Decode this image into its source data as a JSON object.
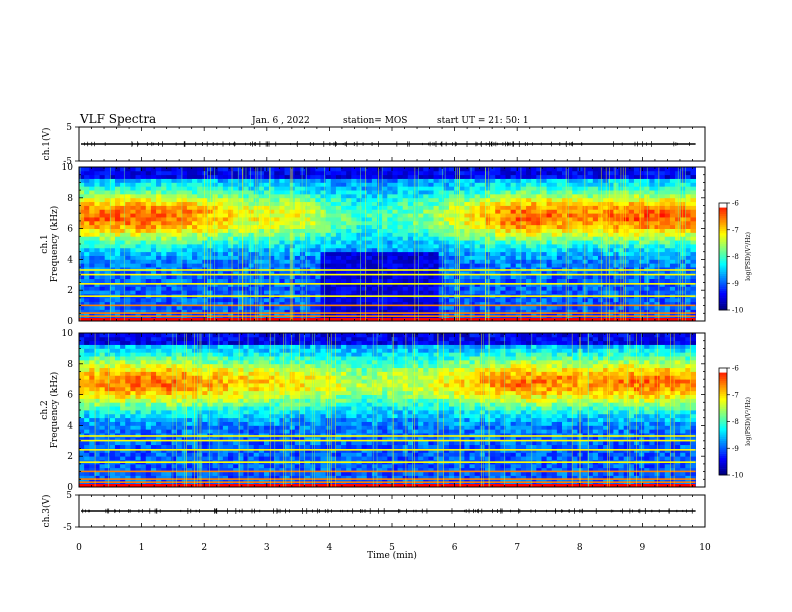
{
  "header": {
    "title": "VLF Spectra",
    "date": "Jan. 6 , 2022",
    "station": "station= MOS",
    "start": "start UT =  21: 50: 1"
  },
  "colors": {
    "jet": [
      "#000080",
      "#0000ff",
      "#0080ff",
      "#00ffff",
      "#80ff80",
      "#ffff00",
      "#ff8000",
      "#ff0000",
      "#ffffff"
    ]
  },
  "chart_data": [
    {
      "id": "ch1-voltage",
      "type": "line",
      "ylabel": "ch.1(V)",
      "ylim": [
        -5,
        5
      ],
      "yticks": [
        5,
        -5
      ],
      "xlim": [
        0,
        10
      ],
      "series": [
        {
          "values_description_free": true,
          "constant_level": 0
        }
      ]
    },
    {
      "id": "ch1-spectrogram",
      "type": "heatmap",
      "ylabel": "ch.1\nFrequency (kHz)",
      "ylabel_lines": [
        "ch.1",
        "Frequency (kHz)"
      ],
      "ylim": [
        0,
        10
      ],
      "yticks": [
        0,
        2,
        4,
        6,
        8,
        10
      ],
      "xlim": [
        0,
        10
      ],
      "data_end_min": 9.85,
      "colorbar": {
        "label": "log(PSD)(V²/Hz)",
        "ticks": [
          -6,
          -7,
          -8,
          -9,
          -10
        ],
        "range": [
          -10,
          -6
        ]
      },
      "intensity_by_time": [
        [
          0.0,
          0.78
        ],
        [
          0.5,
          0.8
        ],
        [
          1.0,
          0.82
        ],
        [
          1.5,
          0.8
        ],
        [
          2.0,
          0.7
        ],
        [
          2.5,
          0.6
        ],
        [
          3.0,
          0.58
        ],
        [
          3.5,
          0.55
        ],
        [
          4.0,
          0.4
        ],
        [
          4.5,
          0.28
        ],
        [
          5.0,
          0.35
        ],
        [
          5.5,
          0.4
        ],
        [
          6.0,
          0.55
        ],
        [
          6.5,
          0.7
        ],
        [
          7.0,
          0.82
        ],
        [
          7.5,
          0.8
        ],
        [
          8.0,
          0.72
        ],
        [
          8.5,
          0.8
        ],
        [
          9.0,
          0.82
        ],
        [
          9.5,
          0.8
        ],
        [
          9.85,
          0.78
        ]
      ]
    },
    {
      "id": "ch2-spectrogram",
      "type": "heatmap",
      "ylabel": "ch.2\nFrequency (kHz)",
      "ylabel_lines": [
        "ch.2",
        "Frequency (kHz)"
      ],
      "ylim": [
        0,
        10
      ],
      "yticks": [
        0,
        2,
        4,
        6,
        8,
        10
      ],
      "xlim": [
        0,
        10
      ],
      "data_end_min": 9.85,
      "colorbar": {
        "label": "log(PSD)(V²/Hz)",
        "ticks": [
          -6,
          -7,
          -8,
          -9,
          -10
        ],
        "range": [
          -10,
          -6
        ]
      },
      "intensity_by_time": [
        [
          0.0,
          0.72
        ],
        [
          0.5,
          0.75
        ],
        [
          1.0,
          0.78
        ],
        [
          1.5,
          0.78
        ],
        [
          2.0,
          0.7
        ],
        [
          2.5,
          0.66
        ],
        [
          3.0,
          0.62
        ],
        [
          3.5,
          0.6
        ],
        [
          4.0,
          0.55
        ],
        [
          4.5,
          0.45
        ],
        [
          5.0,
          0.5
        ],
        [
          5.5,
          0.52
        ],
        [
          6.0,
          0.62
        ],
        [
          6.5,
          0.7
        ],
        [
          7.0,
          0.78
        ],
        [
          7.5,
          0.76
        ],
        [
          8.0,
          0.7
        ],
        [
          8.5,
          0.76
        ],
        [
          9.0,
          0.78
        ],
        [
          9.5,
          0.76
        ],
        [
          9.85,
          0.74
        ]
      ]
    },
    {
      "id": "ch3-voltage",
      "type": "line",
      "ylabel": "ch.3(V)",
      "ylim": [
        -5,
        5
      ],
      "yticks": [
        5,
        -5
      ],
      "xlim": [
        0,
        10
      ],
      "xlabel": "Time (min)",
      "xticks": [
        0,
        1,
        2,
        3,
        4,
        5,
        6,
        7,
        8,
        9,
        10
      ],
      "series": [
        {
          "constant_level": 0
        }
      ]
    }
  ]
}
